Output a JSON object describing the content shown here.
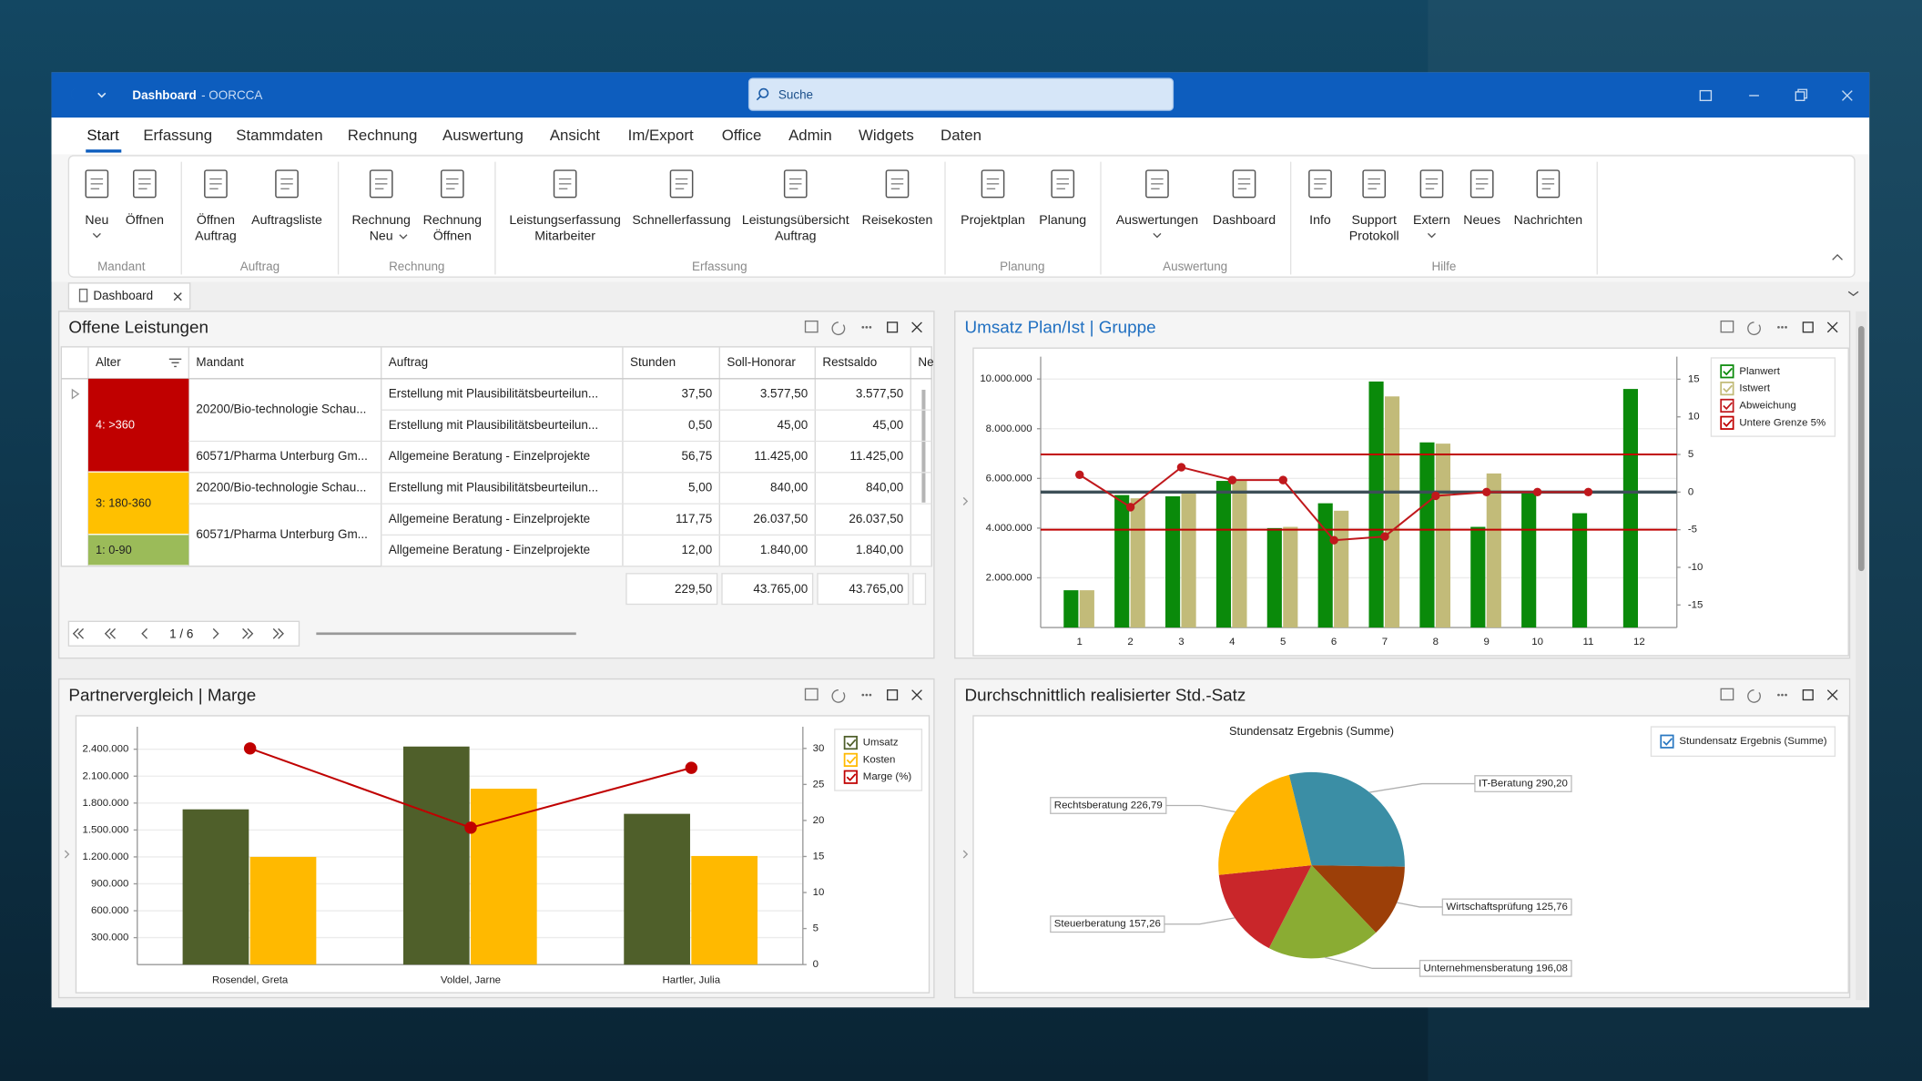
{
  "window": {
    "title": "Dashboard",
    "app": "- OORCCA",
    "search": "Suche"
  },
  "menu": [
    "Start",
    "Erfassung",
    "Stammdaten",
    "Rechnung",
    "Auswertung",
    "Ansicht",
    "Im/Export",
    "Office",
    "Admin",
    "Widgets",
    "Daten"
  ],
  "ribbon": [
    {
      "group": "Mandant",
      "buttons": [
        [
          "Neu"
        ],
        [
          "Öffnen"
        ]
      ]
    },
    {
      "group": "Auftrag",
      "buttons": [
        [
          "Öffnen",
          "Auftrag"
        ],
        [
          "Auftragsliste"
        ]
      ]
    },
    {
      "group": "Rechnung",
      "buttons": [
        [
          "Rechnung",
          "Neu"
        ],
        [
          "Rechnung",
          "Öffnen"
        ]
      ]
    },
    {
      "group": "Erfassung",
      "buttons": [
        [
          "Leistungserfassung",
          "Mitarbeiter"
        ],
        [
          "Schnellerfassung"
        ],
        [
          "Leistungsübersicht",
          "Auftrag"
        ],
        [
          "Reisekosten"
        ]
      ]
    },
    {
      "group": "Planung",
      "buttons": [
        [
          "Projektplan"
        ],
        [
          "Planung"
        ]
      ]
    },
    {
      "group": "Auswertung",
      "buttons": [
        [
          "Auswertungen"
        ],
        [
          "Dashboard"
        ]
      ]
    },
    {
      "group": "Hilfe",
      "buttons": [
        [
          "Info"
        ],
        [
          "Support",
          "Protokoll"
        ],
        [
          "Extern"
        ],
        [
          "Neues"
        ],
        [
          "Nachrichten"
        ]
      ]
    }
  ],
  "document_tab": "Dashboard",
  "panels": [
    {
      "title": "Offene Leistungen",
      "table": {
        "columns": [
          "Alter",
          "Mandant",
          "Auftrag",
          "Stunden",
          "Soll-Honorar",
          "Restsaldo",
          "Ne"
        ],
        "groups": [
          {
            "alter": "4: >360",
            "color": "#c00000",
            "mandanten": [
              {
                "name": "20200/Bio-technologie Schau...",
                "rows": [
                  [
                    "Erstellung mit Plausibilitätsbeurteilun...",
                    "37,50",
                    "3.577,50",
                    "3.577,50"
                  ],
                  [
                    "Erstellung mit Plausibilitätsbeurteilun...",
                    "0,50",
                    "45,00",
                    "45,00"
                  ]
                ]
              },
              {
                "name": "60571/Pharma Unterburg Gm...",
                "rows": [
                  [
                    "Allgemeine Beratung - Einzelprojekte",
                    "56,75",
                    "11.425,00",
                    "11.425,00"
                  ]
                ]
              }
            ]
          },
          {
            "alter": "3: 180-360",
            "color": "#ffc000",
            "mandanten": [
              {
                "name": "20200/Bio-technologie Schau...",
                "rows": [
                  [
                    "Erstellung mit Plausibilitätsbeurteilun...",
                    "5,00",
                    "840,00",
                    "840,00"
                  ]
                ]
              },
              {
                "name": "60571/Pharma Unterburg Gm...",
                "rows": [
                  [
                    "Allgemeine Beratung - Einzelprojekte",
                    "117,75",
                    "26.037,50",
                    "26.037,50"
                  ]
                ]
              }
            ]
          },
          {
            "alter": "1: 0-90",
            "color": "#9bbb59",
            "mandanten": [
              {
                "rows": [
                  [
                    "Allgemeine Beratung - Einzelprojekte",
                    "12,00",
                    "1.840,00",
                    "1.840,00"
                  ]
                ]
              }
            ]
          }
        ],
        "totals": [
          "229,50",
          "43.765,00",
          "43.765,00"
        ],
        "pager": "1 / 6"
      }
    },
    {
      "title": "Umsatz Plan/Ist | Gruppe",
      "chart_data": {
        "type": "combo",
        "categories": [
          "1",
          "2",
          "3",
          "4",
          "5",
          "6",
          "7",
          "8",
          "9",
          "10",
          "11",
          "12"
        ],
        "ylim": [
          0,
          10900000
        ],
        "yticks": [
          {
            "value": 2000000,
            "label": "2.000.000"
          },
          {
            "value": 4000000,
            "label": "4.000.000"
          },
          {
            "value": 6000000,
            "label": "6.000.000"
          },
          {
            "value": 8000000,
            "label": "8.000.000"
          },
          {
            "value": 10000000,
            "label": "10.000.000"
          }
        ],
        "y2lim": [
          -18,
          18
        ],
        "y2ticks": [
          -15,
          -10,
          -5,
          0,
          5,
          10,
          15
        ],
        "series": [
          {
            "name": "Planwert",
            "type": "bar",
            "color": "#0a8a0a",
            "values": [
              1500000,
              5330000,
              5280000,
              5900000,
              4000000,
              5000000,
              9900000,
              7450000,
              4050000,
              5400000,
              4600000,
              9600000
            ]
          },
          {
            "name": "Istwert",
            "type": "bar",
            "color": "#c2bb79",
            "values": [
              1500000,
              5200000,
              5400000,
              5900000,
              4050000,
              4700000,
              9300000,
              7400000,
              6200000,
              null,
              null,
              null
            ]
          },
          {
            "name": "Abweichung",
            "type": "line",
            "axis": "y2",
            "color": "#c0181c",
            "values": [
              2.3,
              -2,
              3.3,
              1.6,
              1.6,
              -6.4,
              -5.9,
              -0.5,
              0,
              0,
              0,
              null
            ]
          }
        ],
        "reference_lines": {
          "name": "Untere Grenze 5%",
          "axis": "y2",
          "color": "#c00000",
          "values": [
            5,
            -5
          ]
        },
        "zero_line": true,
        "grid": true,
        "legend": "right"
      }
    },
    {
      "title": "Partnervergleich | Marge",
      "chart_data": {
        "type": "combo",
        "categories": [
          "Rosendel, Greta",
          "Voldel, Jarne",
          "Hartler, Julia"
        ],
        "ylim": [
          0,
          2650000
        ],
        "yticks": [
          {
            "value": 300000,
            "label": "300.000"
          },
          {
            "value": 600000,
            "label": "600.000"
          },
          {
            "value": 900000,
            "label": "900.000"
          },
          {
            "value": 1200000,
            "label": "1.200.000"
          },
          {
            "value": 1500000,
            "label": "1.500.000"
          },
          {
            "value": 1800000,
            "label": "1.800.000"
          },
          {
            "value": 2100000,
            "label": "2.100.000"
          },
          {
            "value": 2400000,
            "label": "2.400.000"
          }
        ],
        "y2lim": [
          0,
          33
        ],
        "y2ticks": [
          0,
          5,
          10,
          15,
          20,
          25,
          30
        ],
        "series": [
          {
            "name": "Umsatz",
            "type": "bar",
            "color": "#4f5f2a",
            "values": [
              1730000,
              2430000,
              1680000
            ]
          },
          {
            "name": "Kosten",
            "type": "bar",
            "color": "#ffb900",
            "values": [
              1200000,
              1960000,
              1210000
            ]
          },
          {
            "name": "Marge (%)",
            "type": "line",
            "axis": "y2",
            "color": "#c00000",
            "values": [
              30,
              19,
              27.3
            ]
          }
        ],
        "grid": true,
        "legend": "right"
      }
    },
    {
      "title": "Durchschnittlich realisierter Std.-Satz",
      "chart_data": {
        "type": "pie",
        "title": "Stundensatz Ergebnis (Summe)",
        "series": [
          {
            "name": "Stundensatz Ergebnis (Summe)",
            "values": [
              290.2,
              125.76,
              196.08,
              157.26,
              226.79
            ],
            "value_labels": [
              "IT-Beratung 290,20",
              "Wirtschaftsprüfung 125,76",
              "Unternehmensberatung 196,08",
              "Steuerberatung 157,26",
              "Rechtsberatung 226,79"
            ],
            "colors": [
              "#3b8ea5",
              "#9c3f08",
              "#8aac33",
              "#c9262a",
              "#ffb400"
            ]
          }
        ],
        "legend": "top-right"
      }
    }
  ]
}
